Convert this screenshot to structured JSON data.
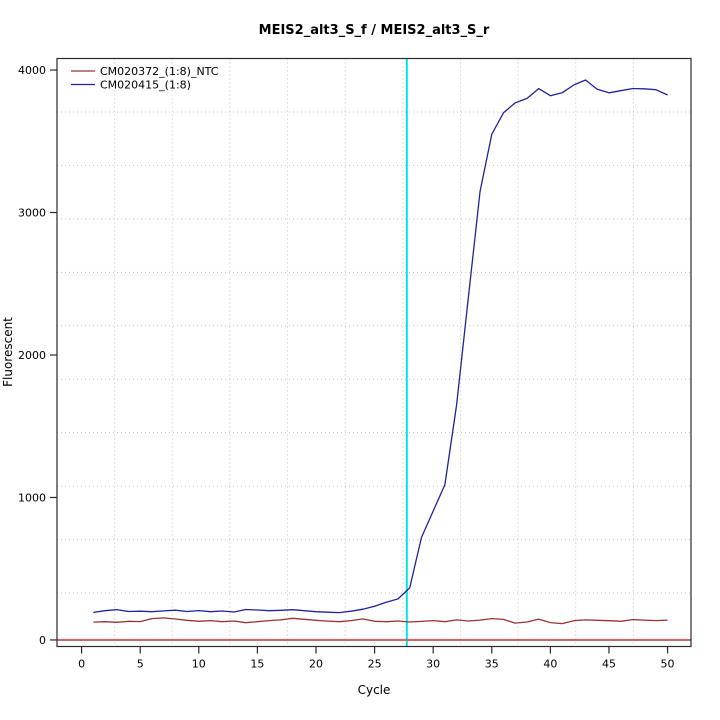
{
  "window": {
    "background": "#ffffff"
  },
  "chart_data": {
    "type": "line",
    "title": "MEIS2_alt3_S_f / MEIS2_alt3_S_r",
    "xlabel": "Cycle",
    "ylabel": "Fluorescent",
    "xlim": [
      -2.1,
      52.0
    ],
    "ylim": [
      -46,
      4081
    ],
    "x_ticks": [
      0,
      5,
      10,
      15,
      20,
      25,
      30,
      35,
      40,
      45,
      50
    ],
    "y_ticks": [
      0,
      1000,
      2000,
      3000,
      4000
    ],
    "grid": {
      "nx": 11,
      "ny": 11,
      "color": "#c3c3c3",
      "style": "dotted"
    },
    "legend_position": "topleft",
    "ct_line": {
      "x": 27.75,
      "color": "#00e5e5"
    },
    "threshold_line": {
      "y": 0,
      "color": "#c96a6a"
    },
    "cycles": [
      1,
      2,
      3,
      4,
      5,
      6,
      7,
      8,
      9,
      10,
      11,
      12,
      13,
      14,
      15,
      16,
      17,
      18,
      19,
      20,
      21,
      22,
      23,
      24,
      25,
      26,
      27,
      28,
      29,
      30,
      31,
      32,
      33,
      34,
      35,
      36,
      37,
      38,
      39,
      40,
      41,
      42,
      43,
      44,
      45,
      46,
      47,
      48,
      49,
      50
    ],
    "series": [
      {
        "name": "CM020372_(1:8)_NTC",
        "color": "#993333",
        "values": [
          125,
          128,
          124,
          131,
          129,
          150,
          155,
          147,
          138,
          131,
          136,
          128,
          133,
          121,
          128,
          136,
          141,
          152,
          145,
          138,
          132,
          128,
          136,
          148,
          131,
          128,
          133,
          126,
          130,
          136,
          128,
          141,
          133,
          139,
          150,
          144,
          118,
          126,
          146,
          122,
          115,
          135,
          141,
          138,
          135,
          131,
          143,
          139,
          136,
          139
        ]
      },
      {
        "name": "CM020415_(1:8)",
        "color": "#22229b",
        "values": [
          193,
          205,
          213,
          200,
          202,
          198,
          204,
          209,
          200,
          206,
          198,
          203,
          196,
          214,
          210,
          205,
          208,
          212,
          205,
          198,
          195,
          192,
          202,
          216,
          237,
          265,
          288,
          365,
          720,
          905,
          1090,
          1650,
          2400,
          3150,
          3550,
          3700,
          3770,
          3800,
          3870,
          3820,
          3840,
          3895,
          3930,
          3865,
          3840,
          3855,
          3870,
          3868,
          3862,
          3825
        ]
      }
    ]
  }
}
